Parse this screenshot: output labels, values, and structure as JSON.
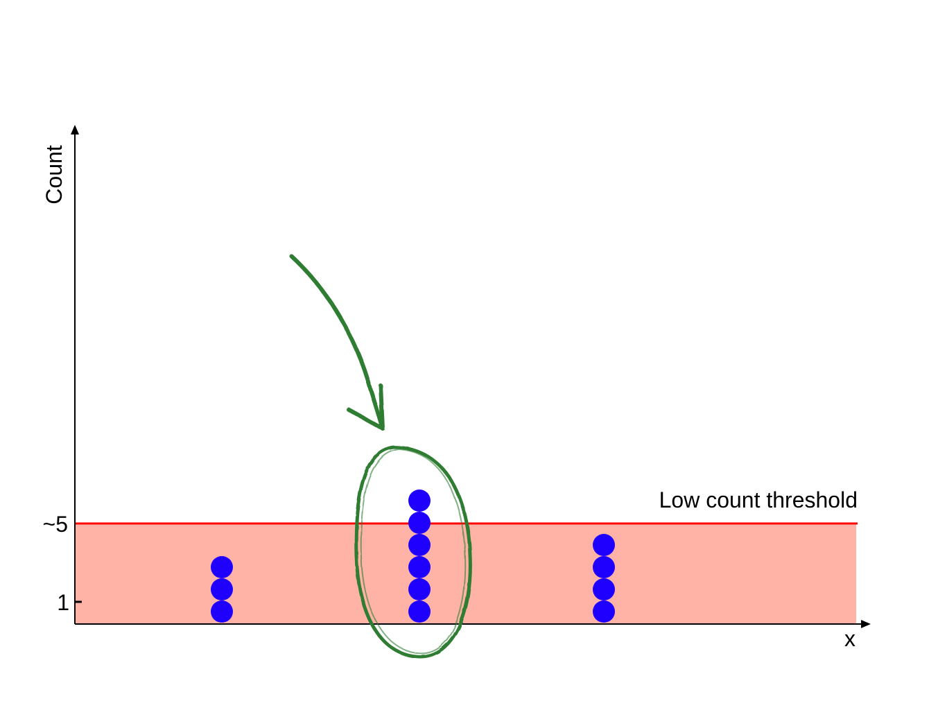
{
  "labels": {
    "y_axis": "Count",
    "x_axis": "x",
    "tick_high": "~5",
    "tick_low": "1",
    "threshold": "Low count threshold"
  },
  "colors": {
    "background": "#ffffff",
    "axis": "#000000",
    "threshold_band": "#ffb3a6",
    "threshold_line": "#ff0000",
    "dots": "#1f00ff",
    "annotation": "#2e7d32"
  },
  "stacks": [
    {
      "id": "a",
      "count": 3
    },
    {
      "id": "b",
      "count": 6,
      "highlighted": true
    },
    {
      "id": "c",
      "count": 4
    }
  ],
  "threshold": {
    "count": 5
  }
}
